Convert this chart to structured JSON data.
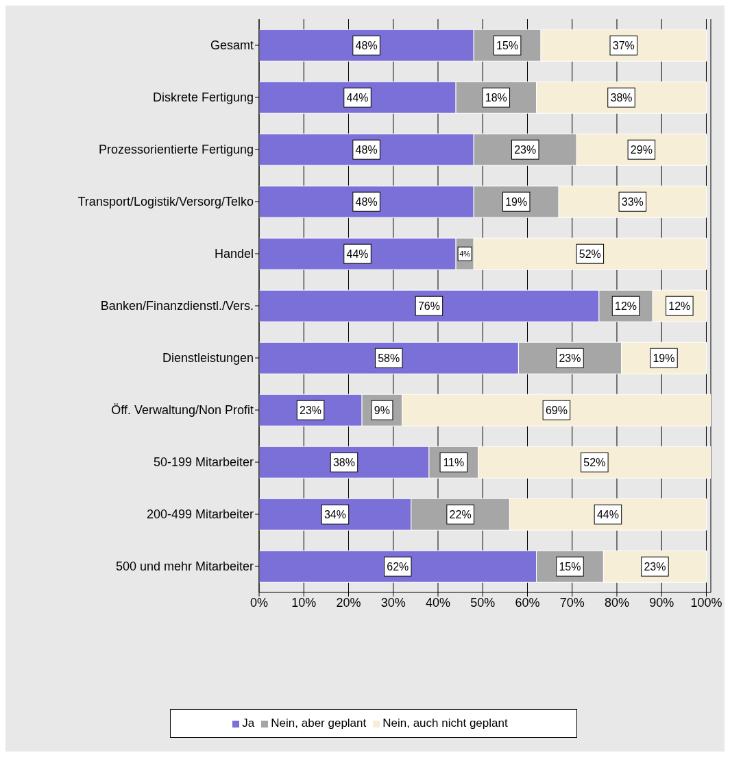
{
  "chart_data": {
    "type": "bar",
    "orientation": "horizontal",
    "stacked": true,
    "categories": [
      "Gesamt",
      "Diskrete Fertigung",
      "Prozessorientierte Fertigung",
      "Transport/Logistik/Versorg/Telko",
      "Handel",
      "Banken/Finanzdienstl./Vers.",
      "Dienstleistungen",
      "Öff. Verwaltung/Non Profit",
      "50-199 Mitarbeiter",
      "200-499 Mitarbeiter",
      "500 und mehr Mitarbeiter"
    ],
    "series": [
      {
        "name": "Ja",
        "color": "#7b70d8",
        "values": [
          48,
          44,
          48,
          48,
          44,
          76,
          58,
          23,
          38,
          34,
          62
        ],
        "value_labels": [
          "48%",
          "44%",
          "48%",
          "48%",
          "44%",
          "76%",
          "58%",
          "23%",
          "38%",
          "34%",
          "62%"
        ]
      },
      {
        "name": "Nein, aber geplant",
        "color": "#a6a6a6",
        "values": [
          15,
          18,
          23,
          19,
          4,
          12,
          23,
          9,
          11,
          22,
          15
        ],
        "value_labels": [
          "15%",
          "18%",
          "23%",
          "19%",
          "4%",
          "12%",
          "23%",
          "9%",
          "11%",
          "22%",
          "15%"
        ]
      },
      {
        "name": "Nein, auch nicht geplant",
        "color": "#f6eed6",
        "values": [
          37,
          38,
          29,
          33,
          52,
          12,
          19,
          69,
          52,
          44,
          23
        ],
        "value_labels": [
          "37%",
          "38%",
          "29%",
          "33%",
          "52%",
          "12%",
          "19%",
          "69%",
          "52%",
          "44%",
          "23%"
        ]
      }
    ],
    "xlim": [
      0,
      101
    ],
    "xticks": [
      {
        "value": 0,
        "label": "0%"
      },
      {
        "value": 10,
        "label": "10%"
      },
      {
        "value": 20,
        "label": "20%"
      },
      {
        "value": 30,
        "label": "30%"
      },
      {
        "value": 40,
        "label": "40%"
      },
      {
        "value": 50,
        "label": "50%"
      },
      {
        "value": 60,
        "label": "60%"
      },
      {
        "value": 70,
        "label": "70%"
      },
      {
        "value": 80,
        "label": "80%"
      },
      {
        "value": 90,
        "label": "90%"
      },
      {
        "value": 100,
        "label": "100%"
      }
    ],
    "grid": "x",
    "legend": "bottom"
  }
}
